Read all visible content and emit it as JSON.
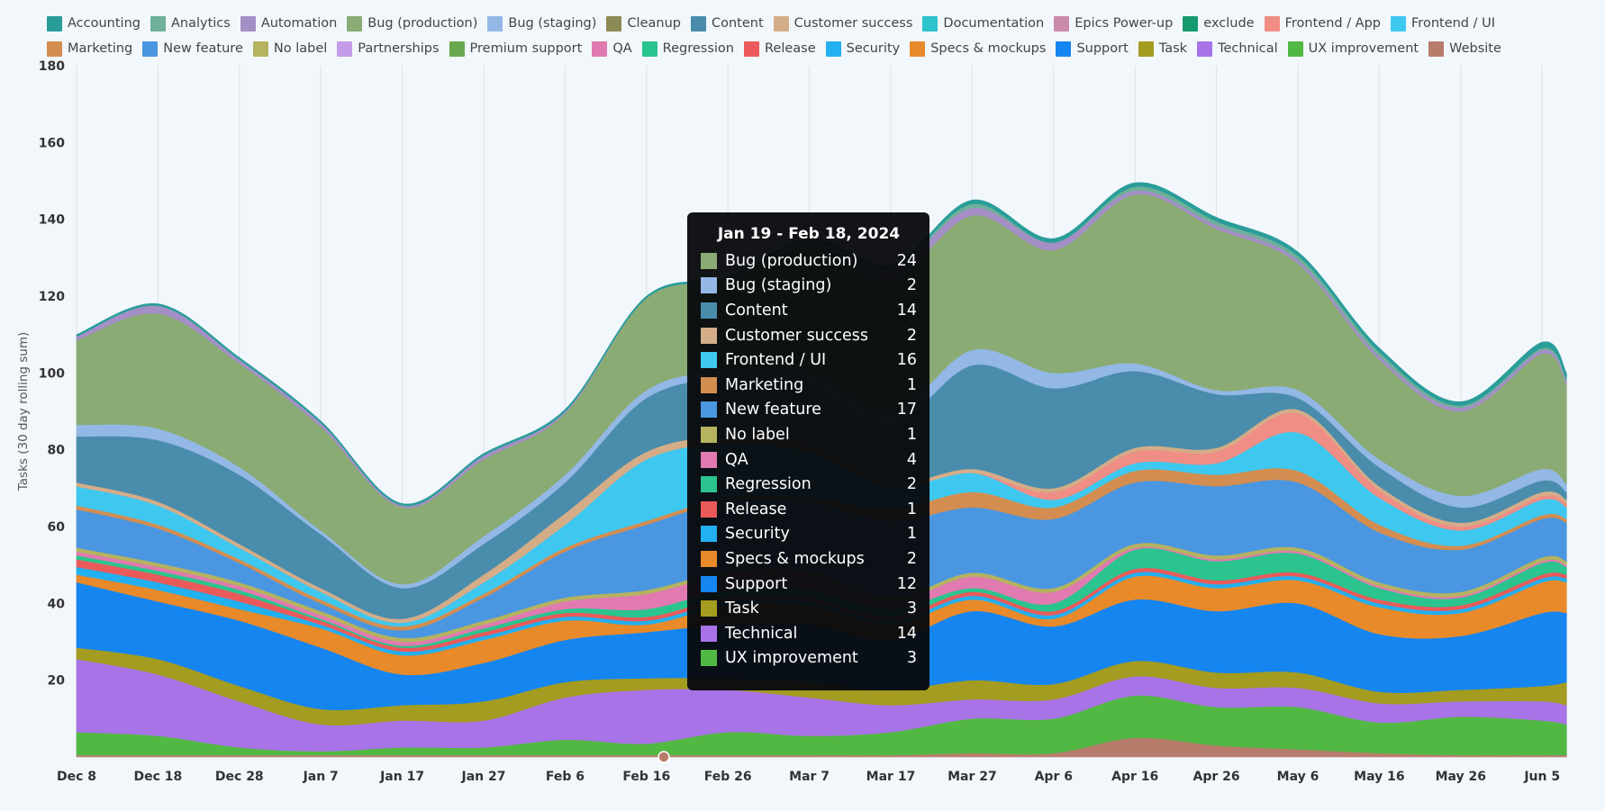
{
  "legend": {
    "items": [
      {
        "name": "Accounting",
        "color": "#2a9d9a"
      },
      {
        "name": "Analytics",
        "color": "#6fb09a"
      },
      {
        "name": "Automation",
        "color": "#a48fc6"
      },
      {
        "name": "Bug (production)",
        "color": "#8aab74"
      },
      {
        "name": "Bug (staging)",
        "color": "#93b8e6"
      },
      {
        "name": "Cleanup",
        "color": "#8d8a55"
      },
      {
        "name": "Content",
        "color": "#4a8cab"
      },
      {
        "name": "Customer success",
        "color": "#d4ad88"
      },
      {
        "name": "Documentation",
        "color": "#2ec4cc"
      },
      {
        "name": "Epics Power-up",
        "color": "#cc8aab"
      },
      {
        "name": "exclude",
        "color": "#179a6f"
      },
      {
        "name": "Frontend / App",
        "color": "#f08d84"
      },
      {
        "name": "Frontend / UI",
        "color": "#3ec8f0"
      },
      {
        "name": "Marketing",
        "color": "#d38d50"
      },
      {
        "name": "New feature",
        "color": "#4a96e0"
      },
      {
        "name": "No label",
        "color": "#b5b35f"
      },
      {
        "name": "Partnerships",
        "color": "#c39be8"
      },
      {
        "name": "Premium support",
        "color": "#6aa84f"
      },
      {
        "name": "QA",
        "color": "#e07ab0"
      },
      {
        "name": "Regression",
        "color": "#2bc48f"
      },
      {
        "name": "Release",
        "color": "#ea5a5a"
      },
      {
        "name": "Security",
        "color": "#22b0f0"
      },
      {
        "name": "Specs & mockups",
        "color": "#e88a2a"
      },
      {
        "name": "Support",
        "color": "#1585f0"
      },
      {
        "name": "Task",
        "color": "#a39c20"
      },
      {
        "name": "Technical",
        "color": "#a873e6"
      },
      {
        "name": "UX improvement",
        "color": "#52b844"
      },
      {
        "name": "Website",
        "color": "#b87c6c"
      }
    ]
  },
  "tooltip": {
    "title": "Jan 19 - Feb 18, 2024",
    "rows": [
      {
        "label": "Bug (production)",
        "value": "24",
        "color": "#8aab74"
      },
      {
        "label": "Bug (staging)",
        "value": "2",
        "color": "#93b8e6"
      },
      {
        "label": "Content",
        "value": "14",
        "color": "#4a8cab"
      },
      {
        "label": "Customer success",
        "value": "2",
        "color": "#d4ad88"
      },
      {
        "label": "Frontend / UI",
        "value": "16",
        "color": "#3ec8f0"
      },
      {
        "label": "Marketing",
        "value": "1",
        "color": "#d38d50"
      },
      {
        "label": "New feature",
        "value": "17",
        "color": "#4a96e0"
      },
      {
        "label": "No label",
        "value": "1",
        "color": "#b5b35f"
      },
      {
        "label": "QA",
        "value": "4",
        "color": "#e07ab0"
      },
      {
        "label": "Regression",
        "value": "2",
        "color": "#2bc48f"
      },
      {
        "label": "Release",
        "value": "1",
        "color": "#ea5a5a"
      },
      {
        "label": "Security",
        "value": "1",
        "color": "#22b0f0"
      },
      {
        "label": "Specs & mockups",
        "value": "2",
        "color": "#e88a2a"
      },
      {
        "label": "Support",
        "value": "12",
        "color": "#1585f0"
      },
      {
        "label": "Task",
        "value": "3",
        "color": "#a39c20"
      },
      {
        "label": "Technical",
        "value": "14",
        "color": "#a873e6"
      },
      {
        "label": "UX improvement",
        "value": "3",
        "color": "#52b844"
      }
    ]
  },
  "chart_data": {
    "type": "area",
    "stacked": true,
    "ylabel": "Tasks (30 day rolling sum)",
    "ylim": [
      0,
      180
    ],
    "yticks": [
      20,
      40,
      60,
      80,
      100,
      120,
      140,
      160,
      180
    ],
    "xticks": [
      "Dec 8",
      "Dec 18",
      "Dec 28",
      "Jan 7",
      "Jan 17",
      "Jan 27",
      "Feb 6",
      "Feb 16",
      "Feb 26",
      "Mar 7",
      "Mar 17",
      "Mar 27",
      "Apr 6",
      "Apr 16",
      "Apr 26",
      "May 6",
      "May 16",
      "May 26",
      "Jun 5"
    ],
    "grid": "vertical",
    "legend": "top",
    "x": [
      "2023-12-08",
      "2023-12-18",
      "2023-12-28",
      "2024-01-07",
      "2024-01-17",
      "2024-01-27",
      "2024-02-06",
      "2024-02-16",
      "2024-02-26",
      "2024-03-07",
      "2024-03-17",
      "2024-03-27",
      "2024-04-06",
      "2024-04-16",
      "2024-04-26",
      "2024-05-06",
      "2024-05-16",
      "2024-05-26",
      "2024-06-05",
      "2024-06-08"
    ],
    "series": [
      {
        "name": "Website",
        "color": "#b87c6c",
        "values": [
          0.5,
          0.5,
          0.5,
          0.5,
          0.5,
          0.5,
          0.5,
          0.5,
          0.5,
          0.5,
          0.5,
          1,
          1,
          5,
          3,
          2,
          1,
          0.5,
          0.5,
          0.5
        ]
      },
      {
        "name": "UX improvement",
        "color": "#52b844",
        "values": [
          6,
          5,
          2,
          1,
          2,
          2,
          4,
          3,
          6,
          5,
          6,
          9,
          9,
          11,
          10,
          11,
          8,
          10,
          9,
          8
        ]
      },
      {
        "name": "Technical",
        "color": "#a873e6",
        "values": [
          19,
          16,
          12,
          7,
          7,
          7,
          11,
          14,
          11,
          10,
          7,
          5,
          5,
          5,
          5,
          5,
          5,
          4,
          5,
          5
        ]
      },
      {
        "name": "Task",
        "color": "#a39c20",
        "values": [
          3,
          4,
          4,
          4,
          4,
          5,
          4,
          3,
          3,
          4,
          4,
          5,
          4,
          4,
          4,
          4,
          3,
          3,
          4,
          6
        ]
      },
      {
        "name": "Support",
        "color": "#1585f0",
        "values": [
          17,
          15,
          17,
          16,
          8,
          10,
          11,
          12,
          14,
          15,
          13,
          18,
          15,
          16,
          16,
          18,
          15,
          14,
          19,
          18
        ]
      },
      {
        "name": "Specs & mockups",
        "color": "#e88a2a",
        "values": [
          2,
          3,
          3,
          5,
          5,
          6,
          5,
          2,
          5,
          5,
          4,
          3,
          2,
          6,
          6,
          6,
          7,
          6,
          8,
          8
        ]
      },
      {
        "name": "Security",
        "color": "#22b0f0",
        "values": [
          2,
          2,
          2,
          1,
          1,
          1,
          1,
          1,
          1,
          1,
          1,
          1,
          1,
          1,
          1,
          1,
          1,
          1,
          1,
          1
        ]
      },
      {
        "name": "Release",
        "color": "#ea5a5a",
        "values": [
          2,
          2,
          2,
          1,
          1,
          1,
          1,
          1,
          1,
          1,
          1,
          1,
          1,
          1,
          1,
          1,
          1,
          1,
          1,
          1
        ]
      },
      {
        "name": "Regression",
        "color": "#2bc48f",
        "values": [
          1,
          1,
          1,
          0.5,
          0.5,
          1,
          1,
          2,
          2,
          2,
          2,
          1,
          2,
          5,
          5,
          5,
          3,
          2,
          3,
          2
        ]
      },
      {
        "name": "QA",
        "color": "#e07ab0",
        "values": [
          1,
          1,
          1,
          1,
          1,
          1,
          2,
          4,
          4,
          4,
          2,
          3,
          3,
          0.5,
          0.5,
          0.5,
          0.5,
          0.5,
          0.5,
          0.5
        ]
      },
      {
        "name": "No label",
        "color": "#b5b35f",
        "values": [
          1,
          1,
          1,
          1,
          1,
          1,
          1,
          1,
          1,
          1,
          1,
          1,
          1,
          1,
          1,
          1,
          1,
          1,
          1,
          1
        ]
      },
      {
        "name": "New feature",
        "color": "#4a96e0",
        "values": [
          10,
          9,
          5,
          2,
          2,
          6,
          12,
          17,
          18,
          18,
          20,
          17,
          18,
          16,
          18,
          17,
          13,
          11,
          10,
          10
        ]
      },
      {
        "name": "Marketing",
        "color": "#d38d50",
        "values": [
          1,
          1,
          1,
          1,
          1,
          1,
          1,
          1,
          1,
          1,
          3,
          4,
          3,
          3,
          3,
          3,
          2,
          1,
          1,
          1
        ]
      },
      {
        "name": "Frontend / UI",
        "color": "#3ec8f0",
        "values": [
          5,
          5,
          3,
          2,
          1,
          3,
          6,
          16,
          14,
          12,
          6,
          5,
          2,
          2,
          3,
          10,
          7,
          4,
          4,
          3
        ]
      },
      {
        "name": "Frontend / App",
        "color": "#f08d84",
        "values": [
          0,
          0,
          0,
          0,
          0,
          0,
          0,
          0,
          0,
          0,
          0,
          0,
          2,
          3,
          3,
          5,
          2,
          1,
          1,
          1
        ]
      },
      {
        "name": "Customer success",
        "color": "#d4ad88",
        "values": [
          1,
          1,
          1,
          1,
          1,
          2,
          3,
          2,
          2,
          2,
          1,
          1,
          1,
          1,
          1,
          1,
          1,
          1,
          1,
          1
        ]
      },
      {
        "name": "Content",
        "color": "#4a8cab",
        "values": [
          12,
          16,
          18,
          14,
          8,
          8,
          8,
          14,
          15,
          15,
          15,
          27,
          26,
          20,
          14,
          3,
          5,
          4,
          3,
          2
        ]
      },
      {
        "name": "Bug (staging)",
        "color": "#93b8e6",
        "values": [
          3,
          3,
          2,
          1,
          1,
          2,
          2,
          2,
          2,
          3,
          3,
          4,
          4,
          2,
          1,
          2,
          2,
          3,
          3,
          2
        ]
      },
      {
        "name": "Bug (production)",
        "color": "#8aab74",
        "values": [
          22,
          30,
          27,
          27,
          20,
          20,
          16,
          24,
          24,
          34,
          35,
          35,
          32,
          44,
          42,
          33,
          26,
          22,
          30,
          26
        ]
      },
      {
        "name": "Automation",
        "color": "#a48fc6",
        "values": [
          1,
          2,
          1,
          1,
          0.5,
          1,
          0.5,
          0,
          0,
          1,
          3,
          2,
          2,
          1,
          1,
          1,
          1,
          1,
          1,
          1
        ]
      },
      {
        "name": "Analytics",
        "color": "#6fb09a",
        "values": [
          0,
          0,
          0,
          0,
          0,
          0,
          0,
          0,
          0,
          0,
          0,
          1,
          0,
          1,
          1,
          1,
          1,
          0.5,
          0.5,
          0.5
        ]
      },
      {
        "name": "Accounting",
        "color": "#2a9d9a",
        "values": [
          0.5,
          0.5,
          0.5,
          0.5,
          0.5,
          0.5,
          0.5,
          0.5,
          0.5,
          0.5,
          0.5,
          1,
          1,
          1,
          1,
          1,
          1,
          1,
          1.5,
          1.5
        ]
      }
    ]
  }
}
